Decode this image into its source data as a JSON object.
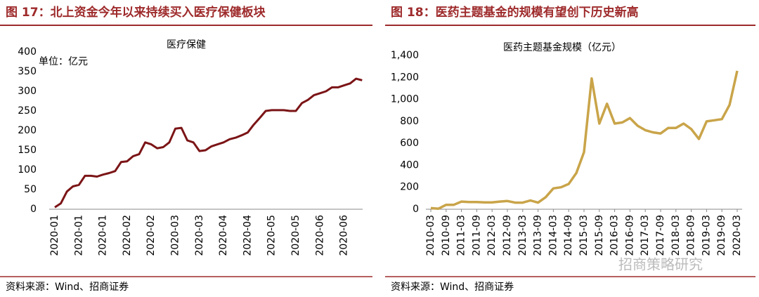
{
  "chart_data": [
    {
      "type": "line",
      "caption": "图 17：北上资金今年以来持续买入医疗保健板块",
      "title": "医疗保健",
      "annotation": "单位：亿元",
      "source": "资料来源：Wind、招商证券",
      "categories": [
        "2020-01",
        null,
        null,
        null,
        "2020-01",
        null,
        null,
        null,
        "2020-01",
        null,
        null,
        null,
        "2020-02",
        null,
        null,
        null,
        "2020-02",
        null,
        null,
        null,
        "2020-03",
        null,
        null,
        null,
        "2020-03",
        null,
        null,
        null,
        "2020-04",
        null,
        null,
        null,
        "2020-04",
        null,
        null,
        null,
        "2020-05",
        null,
        null,
        null,
        "2020-05",
        null,
        null,
        null,
        "2020-06",
        null,
        null,
        null,
        "2020-06",
        null,
        null,
        null
      ],
      "series": [
        {
          "name": "医疗保健",
          "color": "#7b1416",
          "values": [
            5,
            15,
            45,
            58,
            62,
            85,
            85,
            83,
            88,
            92,
            97,
            120,
            122,
            135,
            140,
            170,
            165,
            155,
            158,
            170,
            205,
            207,
            175,
            170,
            148,
            150,
            160,
            165,
            170,
            178,
            182,
            188,
            195,
            215,
            232,
            250,
            252,
            252,
            252,
            250,
            250,
            270,
            278,
            290,
            295,
            300,
            310,
            310,
            315,
            320,
            332,
            328
          ]
        }
      ],
      "ylim": [
        0,
        400
      ],
      "yticks": [
        0,
        50,
        100,
        150,
        200,
        250,
        300,
        350,
        400
      ]
    },
    {
      "type": "line",
      "caption": "图 18：医药主题基金的规模有望创下历史新高",
      "title": "医药主题基金规模（亿元）",
      "source": "资料来源：Wind、招商证券",
      "categories": [
        "2010-03",
        null,
        "2010-09",
        null,
        "2011-03",
        null,
        "2011-09",
        null,
        "2012-03",
        null,
        "2012-09",
        null,
        "2013-03",
        null,
        "2013-09",
        null,
        "2014-03",
        null,
        "2014-09",
        null,
        "2015-03",
        null,
        "2015-09",
        null,
        "2016-03",
        null,
        "2016-09",
        null,
        "2017-03",
        null,
        "2017-09",
        null,
        "2018-03",
        null,
        "2018-09",
        null,
        "2019-03",
        null,
        "2019-09",
        null,
        "2020-03"
      ],
      "series": [
        {
          "name": "医药主题基金规模",
          "color": "#c9a449",
          "values": [
            10,
            5,
            40,
            40,
            70,
            65,
            65,
            62,
            62,
            70,
            75,
            60,
            60,
            80,
            60,
            110,
            190,
            200,
            230,
            330,
            520,
            1190,
            780,
            960,
            780,
            790,
            830,
            760,
            720,
            700,
            690,
            740,
            740,
            780,
            730,
            640,
            800,
            810,
            820,
            950,
            1260
          ]
        }
      ],
      "ylim": [
        0,
        1400
      ],
      "yticks": [
        0,
        200,
        400,
        600,
        800,
        {
          "value": 1000,
          "label": "1,000"
        },
        {
          "value": 1200,
          "label": "1,200"
        },
        {
          "value": 1400,
          "label": "1,400"
        }
      ]
    }
  ],
  "watermark": "招商策略研究"
}
